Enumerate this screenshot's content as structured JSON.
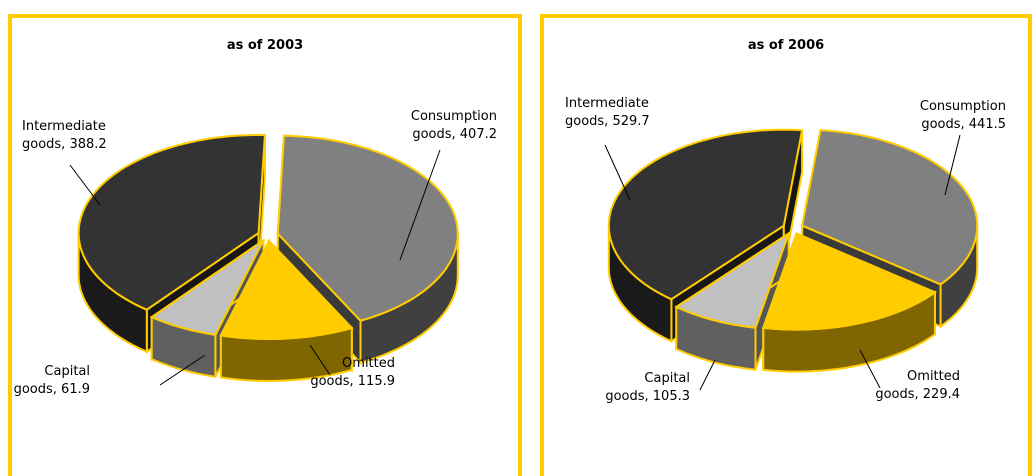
{
  "chart_data": [
    {
      "type": "pie3d",
      "title": "as of 2003",
      "values": [
        407.2,
        115.9,
        61.9,
        388.2
      ],
      "value_labels": [
        [
          "Consumption",
          "goods, 407.2"
        ],
        [
          "Omitted",
          "goods, 115.9"
        ],
        [
          "Capital",
          "goods, 61.9"
        ],
        [
          "Intermediate",
          "goods, 388.2"
        ]
      ],
      "colors": [
        "#808080",
        "#ffcc00",
        "#c0c0c0",
        "#333333"
      ]
    },
    {
      "type": "pie3d",
      "title": "as of 2006",
      "values": [
        441.5,
        229.4,
        105.3,
        529.7
      ],
      "value_labels": [
        [
          "Consumption",
          "goods, 441.5"
        ],
        [
          "Omitted",
          "goods, 229.4"
        ],
        [
          "Capital",
          "goods, 105.3"
        ],
        [
          "Intermediate",
          "goods, 529.7"
        ]
      ],
      "colors": [
        "#808080",
        "#ffcc00",
        "#c0c0c0",
        "#333333"
      ]
    }
  ]
}
